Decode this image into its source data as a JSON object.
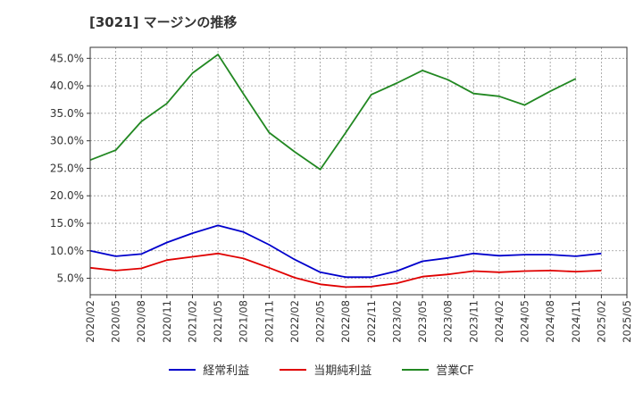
{
  "title": "[3021]  マージンの推移",
  "colors": {
    "keijo": "#0000cc",
    "junri": "#e00000",
    "eigyo_cf": "#228822",
    "grid": "#999999",
    "axis_text": "#333333"
  },
  "chart_data": {
    "type": "line",
    "title": "[3021]  マージンの推移",
    "xlabel": "",
    "ylabel": "",
    "y_ticks": [
      "5.0%",
      "10.0%",
      "15.0%",
      "20.0%",
      "25.0%",
      "30.0%",
      "35.0%",
      "40.0%",
      "45.0%"
    ],
    "y_tick_values": [
      5,
      10,
      15,
      20,
      25,
      30,
      35,
      40,
      45
    ],
    "ylim": [
      2,
      47
    ],
    "x_ticks": [
      "2020/02",
      "2020/05",
      "2020/08",
      "2020/11",
      "2021/02",
      "2021/05",
      "2021/08",
      "2021/11",
      "2022/02",
      "2022/05",
      "2022/08",
      "2022/11",
      "2023/02",
      "2023/05",
      "2023/08",
      "2023/11",
      "2024/02",
      "2024/05",
      "2024/08",
      "2024/11",
      "2025/02",
      "2025/05"
    ],
    "grid": true,
    "legend_position": "bottom",
    "series": [
      {
        "name": "経常利益",
        "color": "#0000cc",
        "values": [
          10.0,
          9.0,
          9.4,
          11.5,
          13.2,
          14.6,
          13.4,
          11.1,
          8.4,
          6.1,
          5.2,
          5.2,
          6.3,
          8.1,
          8.7,
          9.5,
          9.1,
          9.3,
          9.3,
          9.0,
          9.5,
          null
        ]
      },
      {
        "name": "当期純利益",
        "color": "#e00000",
        "values": [
          6.9,
          6.4,
          6.8,
          8.3,
          8.9,
          9.5,
          8.6,
          6.9,
          5.1,
          3.9,
          3.4,
          3.5,
          4.1,
          5.3,
          5.7,
          6.3,
          6.1,
          6.3,
          6.4,
          6.2,
          6.4,
          null
        ]
      },
      {
        "name": "営業CF",
        "color": "#228822",
        "values": [
          26.5,
          28.3,
          33.5,
          36.8,
          42.3,
          45.7,
          38.5,
          31.5,
          28.0,
          24.8,
          31.5,
          38.4,
          40.5,
          42.8,
          41.1,
          38.6,
          38.1,
          36.5,
          39.0,
          41.3,
          null,
          null
        ]
      }
    ]
  }
}
